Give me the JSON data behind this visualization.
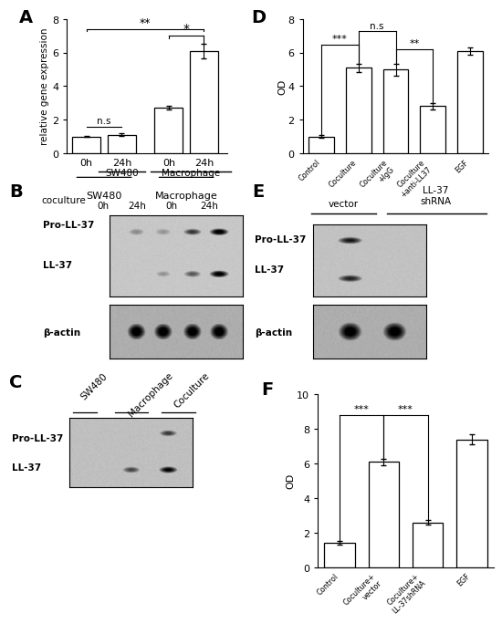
{
  "panel_A": {
    "categories": [
      "0h",
      "24h",
      "0h",
      "24h"
    ],
    "values": [
      1.0,
      1.1,
      2.7,
      6.1
    ],
    "errors": [
      0.05,
      0.08,
      0.1,
      0.45
    ],
    "ylabel": "relative gene expression",
    "ylim": [
      0,
      8
    ],
    "yticks": [
      0,
      2,
      4,
      6,
      8
    ],
    "bar_color": "#ffffff",
    "bar_edgecolor": "#000000",
    "label": "A"
  },
  "panel_D": {
    "categories": [
      "Control",
      "Coculture",
      "Coculture\n+IgG",
      "Coculture\n+anti-LL37",
      "EGF"
    ],
    "values": [
      1.0,
      5.1,
      5.0,
      2.8,
      6.1
    ],
    "errors": [
      0.08,
      0.25,
      0.35,
      0.18,
      0.2
    ],
    "ylabel": "OD",
    "ylim": [
      0,
      8
    ],
    "yticks": [
      0,
      2,
      4,
      6,
      8
    ],
    "bar_color": "#ffffff",
    "bar_edgecolor": "#000000",
    "label": "D"
  },
  "panel_F": {
    "categories": [
      "Control",
      "Coculture+\nvector",
      "Coculture+\nLL-37shRNA",
      "EGF"
    ],
    "values": [
      1.4,
      6.1,
      2.6,
      7.4
    ],
    "errors": [
      0.1,
      0.18,
      0.12,
      0.3
    ],
    "ylabel": "OD",
    "ylim": [
      0,
      10
    ],
    "yticks": [
      0,
      2,
      4,
      6,
      8,
      10
    ],
    "bar_color": "#ffffff",
    "bar_edgecolor": "#000000",
    "label": "F"
  },
  "bg_color": "#ffffff",
  "text_color": "#000000"
}
